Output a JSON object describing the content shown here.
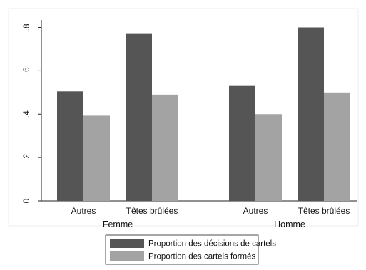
{
  "chart_data": {
    "type": "bar",
    "groups": [
      {
        "label": "Femme",
        "categories": [
          "Autres",
          "Têtes brûlées"
        ]
      },
      {
        "label": "Homme",
        "categories": [
          "Autres",
          "Têtes brûlées"
        ]
      }
    ],
    "series": [
      {
        "name": "Proportion des décisions de cartels",
        "color": "#555555",
        "values": [
          0.505,
          0.77,
          0.53,
          0.8
        ]
      },
      {
        "name": "Proportion des cartels formés",
        "color": "#a3a3a3",
        "values": [
          0.393,
          0.49,
          0.4,
          0.5
        ]
      }
    ],
    "yticks": [
      "0",
      ".2",
      ".4",
      ".6",
      ".8"
    ],
    "ylim": [
      0,
      0.85
    ],
    "grid": false,
    "legend_position": "bottom"
  }
}
